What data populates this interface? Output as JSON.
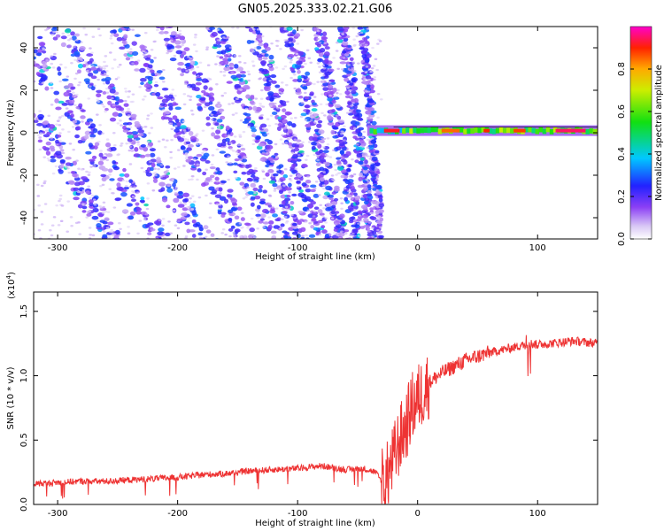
{
  "title": "GN05.2025.333.02.21.G06",
  "chart_data": [
    {
      "type": "heatmap",
      "name": "spectrogram",
      "xlabel": "Height of straight line (km)",
      "ylabel": "Frequency (Hz)",
      "xlim": [
        -320,
        150
      ],
      "ylim": [
        -50,
        50
      ],
      "xticks": [
        -300,
        -200,
        -100,
        0,
        100
      ],
      "yticks": [
        -40,
        -20,
        0,
        20,
        40
      ],
      "colorbar": {
        "label": "Normalized spectral amplitude",
        "range": [
          0,
          1
        ],
        "ticks": [
          0.0,
          0.2,
          0.4,
          0.6,
          0.8
        ],
        "tick_labels": [
          "0.0",
          "0.2",
          "0.4",
          "0.6",
          "0.8"
        ]
      },
      "features": {
        "diagonal_stripes_x_range_km": [
          -320,
          -30
        ],
        "stripe_slopes": "frequency decreases as height increases (negative slope), stripes converge toward about -30 km",
        "steady_line_frequency_hz": 1,
        "steady_line_x_range_km": [
          -50,
          150
        ],
        "steady_line_amplitude_range": [
          0.3,
          1.0
        ]
      }
    },
    {
      "type": "line",
      "name": "snr",
      "xlabel": "Height of straight line (km)",
      "ylabel": "SNR (10 * v/v)",
      "y_scale_label": "(x10",
      "y_scale_exp": "4",
      "xlim": [
        -320,
        150
      ],
      "ylim": [
        0,
        1.65
      ],
      "xticks": [
        -300,
        -200,
        -100,
        0,
        100
      ],
      "yticks": [
        0.0,
        0.5,
        1.0,
        1.5
      ],
      "ytick_labels": [
        "0.0",
        "0.5",
        "1.0",
        "1.5"
      ],
      "series": [
        {
          "name": "SNR",
          "color": "#ee3333",
          "x": [
            -320,
            -300,
            -280,
            -260,
            -240,
            -220,
            -200,
            -180,
            -160,
            -140,
            -120,
            -100,
            -90,
            -80,
            -60,
            -45,
            -35,
            -28,
            -22,
            -15,
            -10,
            -5,
            0,
            10,
            20,
            30,
            40,
            50,
            60,
            70,
            80,
            90,
            95,
            100,
            110,
            120,
            130,
            140,
            150
          ],
          "y": [
            0.16,
            0.17,
            0.18,
            0.18,
            0.19,
            0.2,
            0.21,
            0.23,
            0.24,
            0.26,
            0.27,
            0.28,
            0.29,
            0.3,
            0.27,
            0.28,
            0.25,
            0.15,
            0.3,
            0.5,
            0.6,
            0.75,
            0.82,
            0.95,
            1.02,
            1.07,
            1.12,
            1.15,
            1.18,
            1.2,
            1.22,
            1.24,
            1.25,
            1.24,
            1.25,
            1.26,
            1.27,
            1.26,
            1.25
          ]
        }
      ]
    }
  ]
}
